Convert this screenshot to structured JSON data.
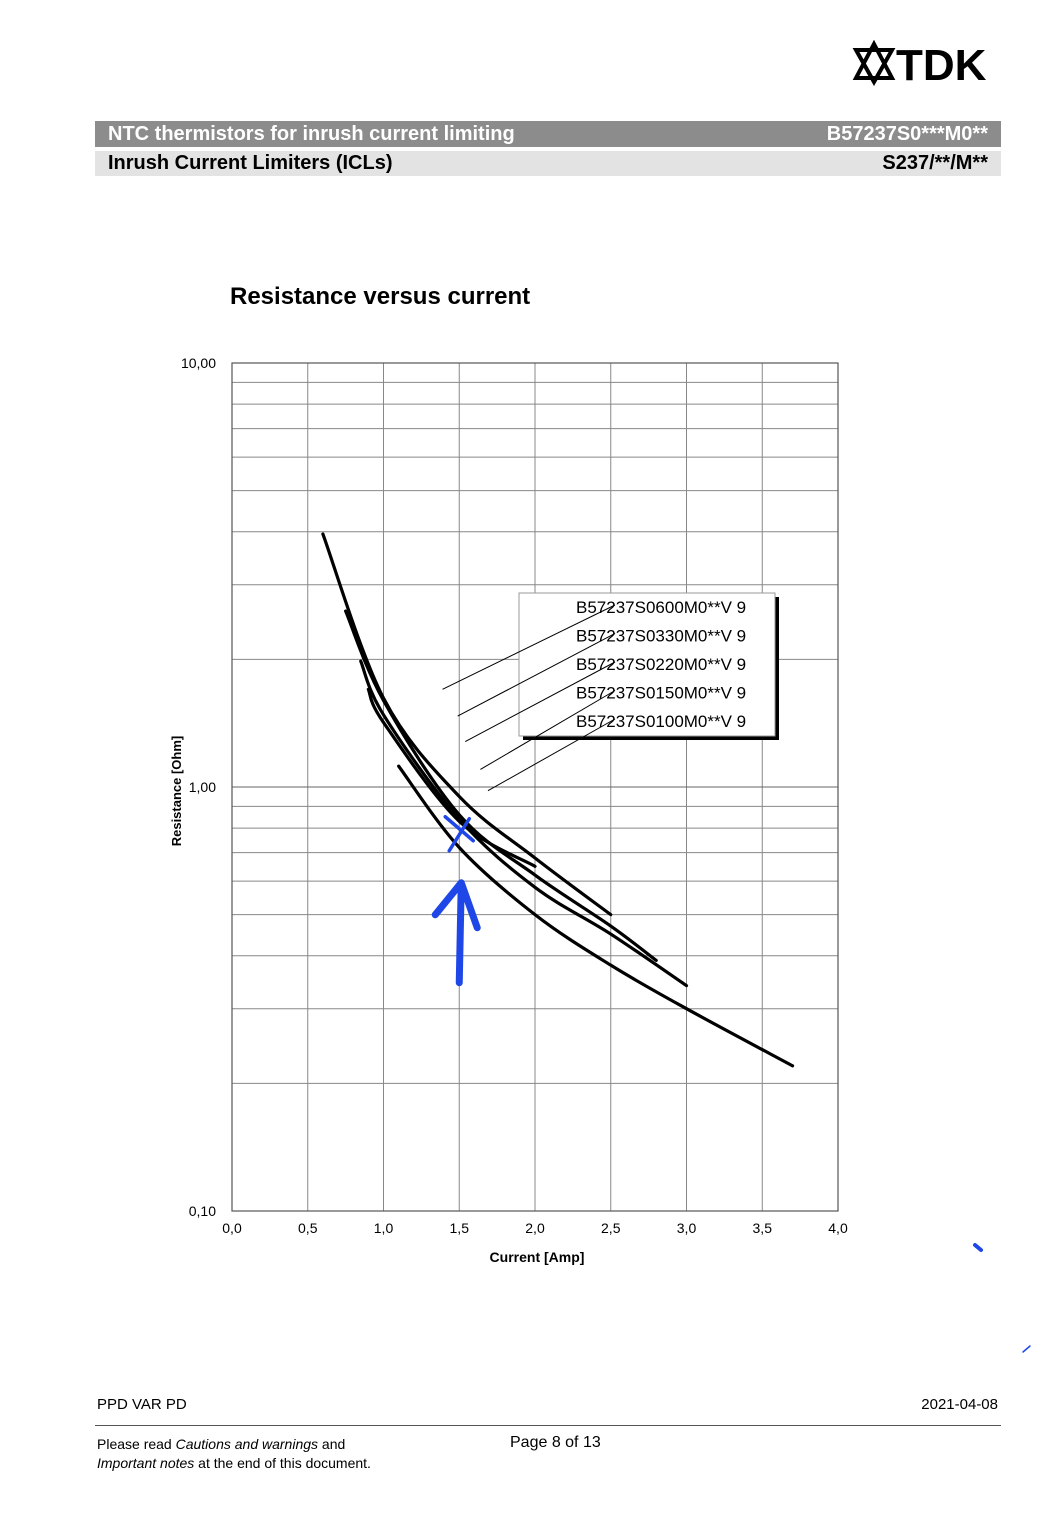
{
  "brand": {
    "name": "TDK"
  },
  "header": {
    "title": "NTC thermistors for inrush current limiting",
    "part_number": "B57237S0***M0**",
    "subtitle": "Inrush Current Limiters (ICLs)",
    "series": "S237/**/M**"
  },
  "chart_title": "Resistance versus current",
  "chart_data": {
    "type": "line",
    "title": "Resistance versus current",
    "xlabel": "Current [Amp]",
    "ylabel": "Resistance [Ohm]",
    "xlim": [
      0,
      4
    ],
    "ylim": [
      0.1,
      10
    ],
    "yscale": "log",
    "grid": true,
    "legend_position": "right",
    "x_ticks": [
      "0,0",
      "0,5",
      "1,0",
      "1,5",
      "2,0",
      "2,5",
      "3,0",
      "3,5",
      "4,0"
    ],
    "y_ticks": [
      "0,10",
      "1,00",
      "10,00"
    ],
    "series": [
      {
        "name": "B57237S0600M0**V 9",
        "points": [
          [
            0.6,
            3.95
          ],
          [
            1.0,
            1.62
          ],
          [
            1.5,
            0.95
          ],
          [
            2.0,
            0.68
          ],
          [
            2.5,
            0.5
          ]
        ]
      },
      {
        "name": "B57237S0330M0**V 9",
        "points": [
          [
            0.75,
            2.6
          ],
          [
            1.0,
            1.6
          ],
          [
            1.5,
            0.86
          ],
          [
            2.0,
            0.62
          ],
          [
            2.5,
            0.47
          ],
          [
            2.8,
            0.39
          ]
        ]
      },
      {
        "name": "B57237S0220M0**V 9",
        "points": [
          [
            0.85,
            1.98
          ],
          [
            1.0,
            1.48
          ],
          [
            1.5,
            0.84
          ],
          [
            2.0,
            0.58
          ],
          [
            2.5,
            0.45
          ],
          [
            3.0,
            0.34
          ]
        ]
      },
      {
        "name": "B57237S0150M0**V 9",
        "points": [
          [
            0.9,
            1.7
          ],
          [
            1.0,
            1.42
          ],
          [
            1.5,
            0.83
          ],
          [
            2.0,
            0.65
          ]
        ]
      },
      {
        "name": "B57237S0100M0**V 9",
        "points": [
          [
            1.1,
            1.12
          ],
          [
            1.5,
            0.72
          ],
          [
            2.0,
            0.5
          ],
          [
            2.5,
            0.38
          ],
          [
            3.0,
            0.3
          ],
          [
            3.7,
            0.22
          ]
        ]
      }
    ]
  },
  "annotation": {
    "color": "#1f47e8",
    "shape": "hand-drawn arrow and cross",
    "x": 1.5,
    "y": 0.78
  },
  "footer": {
    "left": "PPD VAR PD",
    "date": "2021-04-08",
    "note_line1_a": "Please read ",
    "note_line1_b": "Cautions and warnings",
    "note_line1_c": " and",
    "note_line2_a": "Important notes",
    "note_line2_b": " at the end of this document.",
    "page": "Page 8 of 13"
  }
}
